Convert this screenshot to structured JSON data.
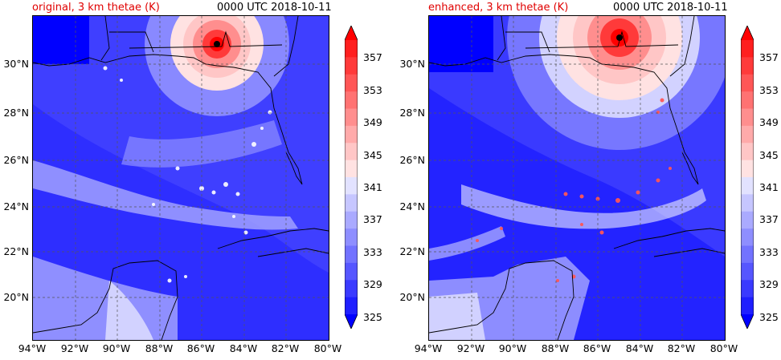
{
  "figure": {
    "panels": [
      {
        "title": "original, 3 km thetae (K)",
        "datetime": "0000 UTC 2018-10-11",
        "hurricane_center": {
          "lon": -85.3,
          "lat": 30.9
        }
      },
      {
        "title": "enhanced, 3 km thetae (K)",
        "datetime": "0000 UTC 2018-10-11",
        "hurricane_center": {
          "lon": -85.0,
          "lat": 31.1
        }
      }
    ],
    "lat_labels": [
      "30°N",
      "28°N",
      "26°N",
      "24°N",
      "22°N",
      "20°N"
    ],
    "lon_labels": [
      "94°W",
      "92°W",
      "90°W",
      "88°W",
      "86°W",
      "84°W",
      "82°W",
      "80°W"
    ],
    "colorbar": {
      "label_ticks": [
        "357",
        "353",
        "349",
        "345",
        "341",
        "337",
        "333",
        "329",
        "325"
      ],
      "colors": [
        "#0000ff",
        "#1f1fff",
        "#3a3aff",
        "#5656ff",
        "#7272ff",
        "#8e8eff",
        "#aaaaff",
        "#c6c6ff",
        "#e2e2ff",
        "#ffe2e2",
        "#ffc6c6",
        "#ffaaaa",
        "#ff8e8e",
        "#ff7272",
        "#ff5656",
        "#ff3a3a",
        "#ff1f1f",
        "#ff0000"
      ]
    }
  }
}
